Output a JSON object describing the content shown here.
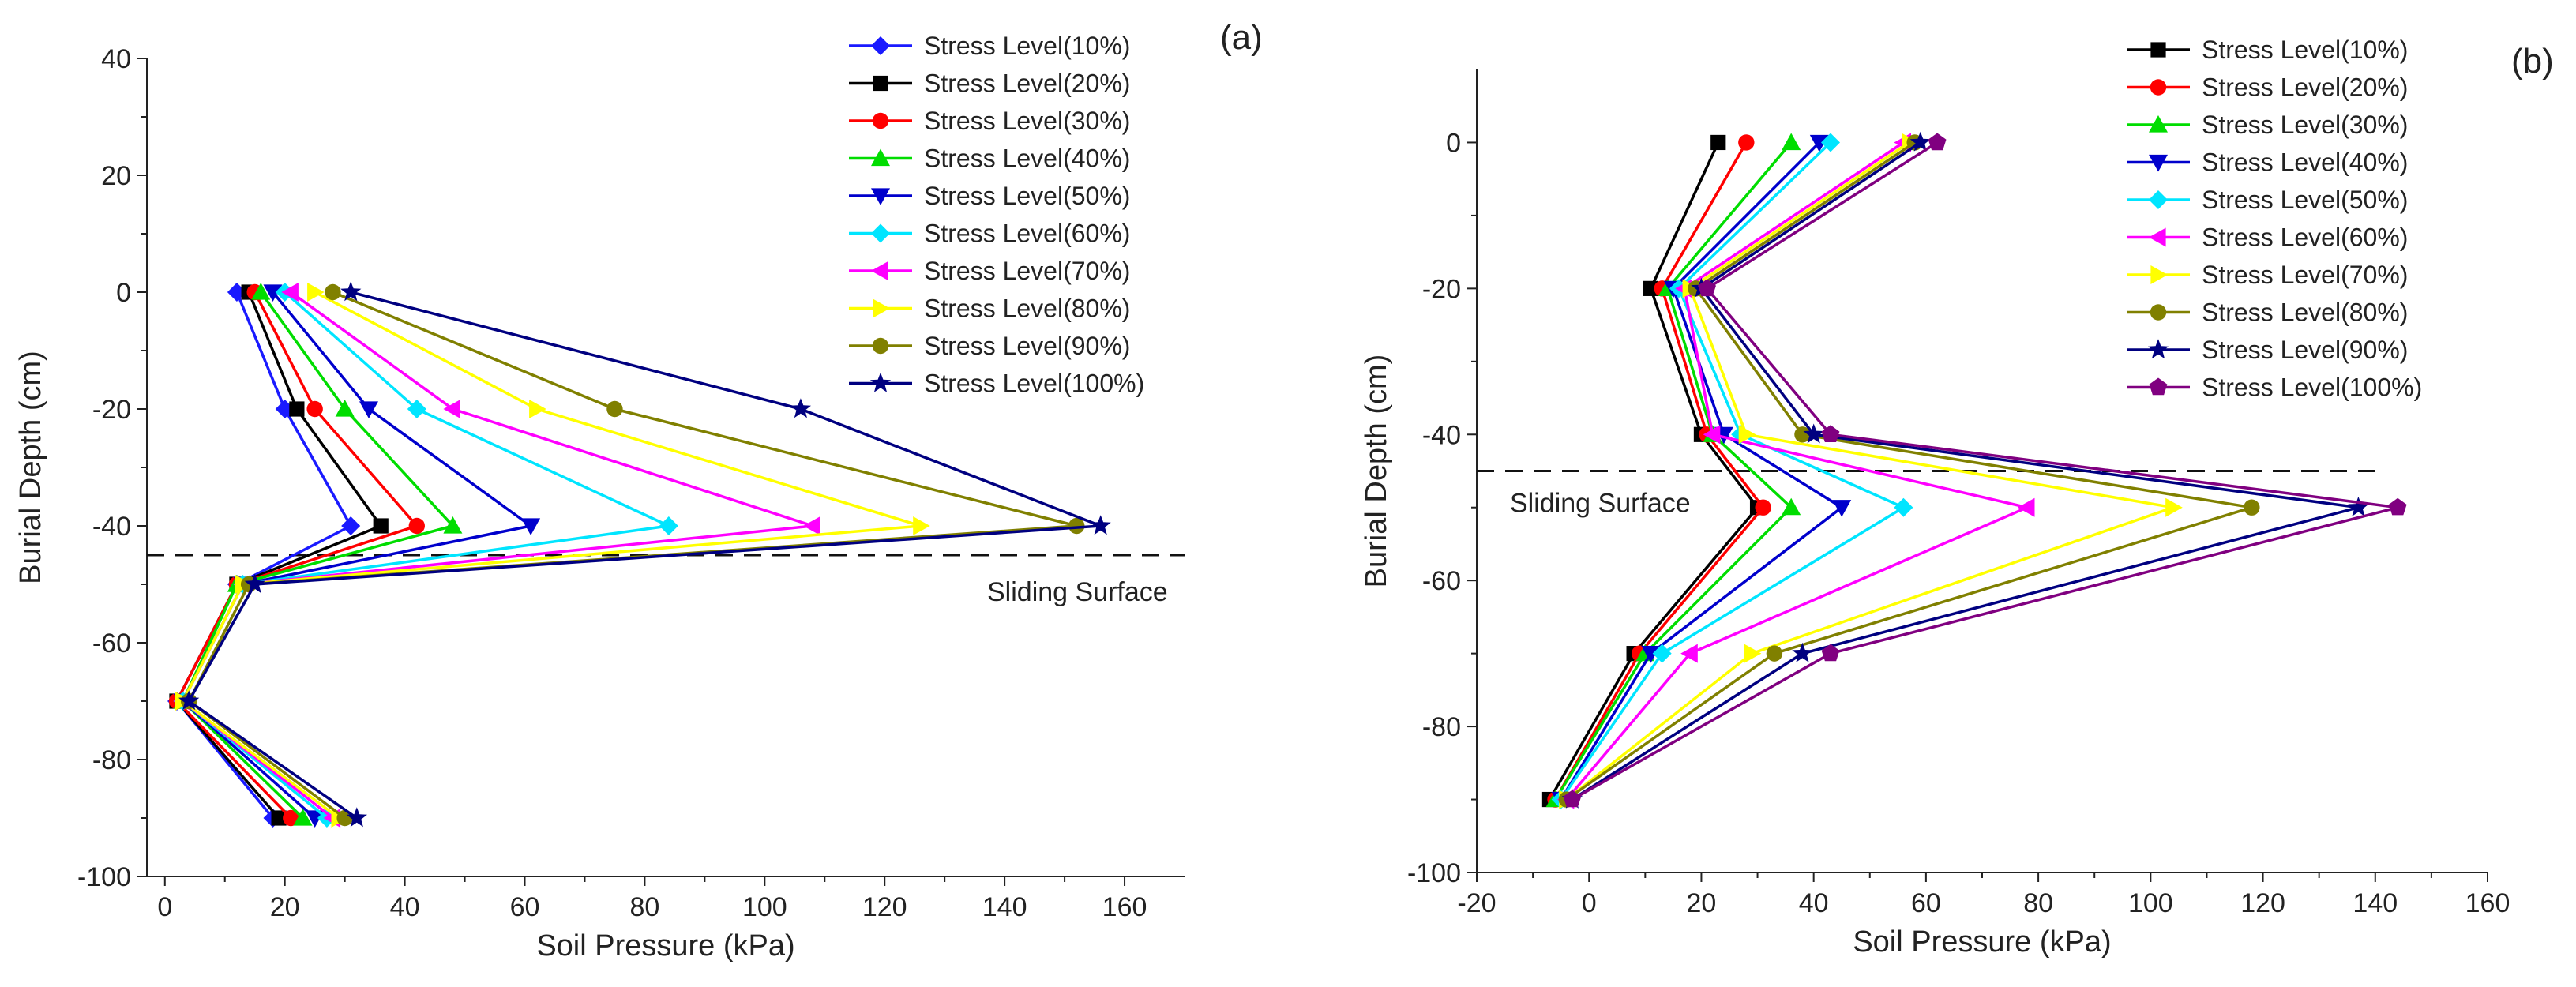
{
  "chart_data": [
    {
      "type": "line",
      "panel_label": "(a)",
      "title": "",
      "xlabel": "Soil Pressure (kPa)",
      "ylabel": "Burial Depth (cm)",
      "xlim": [
        -3,
        170
      ],
      "ylim": [
        -100,
        40
      ],
      "xticks": [
        0,
        20,
        40,
        60,
        80,
        100,
        120,
        140,
        160
      ],
      "yticks": [
        40,
        20,
        0,
        -20,
        -40,
        -60,
        -80,
        -100
      ],
      "legend_position": "top-right",
      "annotations": [
        {
          "text": "Sliding Surface",
          "depth": -45
        }
      ],
      "depths": [
        0,
        -20,
        -40,
        -50,
        -70,
        -90
      ],
      "series": [
        {
          "name": "Stress Level(10%)",
          "color": "#1a1aff",
          "marker": "diamond",
          "x": [
            12,
            20,
            31,
            12,
            2,
            18
          ]
        },
        {
          "name": "Stress Level(20%)",
          "color": "#000000",
          "marker": "square",
          "x": [
            14,
            22,
            36,
            12,
            2,
            19
          ]
        },
        {
          "name": "Stress Level(30%)",
          "color": "#ff0000",
          "marker": "circle",
          "x": [
            15,
            25,
            42,
            12,
            2,
            21
          ]
        },
        {
          "name": "Stress Level(40%)",
          "color": "#00dd00",
          "marker": "triangle-up",
          "x": [
            16,
            30,
            48,
            12,
            3,
            23
          ]
        },
        {
          "name": "Stress Level(50%)",
          "color": "#0000cc",
          "marker": "triangle-down",
          "x": [
            18,
            34,
            61,
            13,
            3,
            25
          ]
        },
        {
          "name": "Stress Level(60%)",
          "color": "#00e5ff",
          "marker": "diamond",
          "x": [
            20,
            42,
            84,
            13,
            3,
            27
          ]
        },
        {
          "name": "Stress Level(70%)",
          "color": "#ff00ff",
          "marker": "triangle-left",
          "x": [
            21,
            48,
            108,
            13,
            3,
            28
          ]
        },
        {
          "name": "Stress Level(80%)",
          "color": "#ffff00",
          "marker": "triangle-right",
          "x": [
            25,
            62,
            126,
            13,
            3,
            29
          ]
        },
        {
          "name": "Stress Level(90%)",
          "color": "#808000",
          "marker": "circle",
          "x": [
            28,
            75,
            152,
            14,
            4,
            30
          ]
        },
        {
          "name": "Stress Level(100%)",
          "color": "#000080",
          "marker": "star",
          "x": [
            31,
            106,
            156,
            15,
            4,
            32
          ]
        }
      ]
    },
    {
      "type": "line",
      "panel_label": "(b)",
      "title": "",
      "xlabel": "Soil Pressure (kPa)",
      "ylabel": "Burial Depth (cm)",
      "xlim": [
        -20,
        160
      ],
      "ylim": [
        -100,
        10
      ],
      "xticks": [
        -20,
        0,
        20,
        40,
        60,
        80,
        100,
        120,
        140,
        160
      ],
      "yticks": [
        0,
        -20,
        -40,
        -60,
        -80,
        -100
      ],
      "legend_position": "top-right",
      "annotations": [
        {
          "text": "Sliding Surface",
          "depth": -45
        }
      ],
      "depths": [
        0,
        -20,
        -40,
        -50,
        -70,
        -90
      ],
      "series": [
        {
          "name": "Stress Level(10%)",
          "color": "#000000",
          "marker": "square",
          "x": [
            23,
            11,
            20,
            30,
            8,
            -7
          ]
        },
        {
          "name": "Stress Level(20%)",
          "color": "#ff0000",
          "marker": "circle",
          "x": [
            28,
            13,
            21,
            31,
            9,
            -6
          ]
        },
        {
          "name": "Stress Level(30%)",
          "color": "#00dd00",
          "marker": "triangle-up",
          "x": [
            36,
            14,
            22,
            36,
            10,
            -6
          ]
        },
        {
          "name": "Stress Level(40%)",
          "color": "#0000cc",
          "marker": "triangle-down",
          "x": [
            41,
            15,
            24,
            45,
            11,
            -5
          ]
        },
        {
          "name": "Stress Level(50%)",
          "color": "#00e5ff",
          "marker": "diamond",
          "x": [
            43,
            16,
            27,
            56,
            13,
            -5
          ]
        },
        {
          "name": "Stress Level(60%)",
          "color": "#ff00ff",
          "marker": "triangle-left",
          "x": [
            56,
            17,
            22,
            78,
            18,
            -4
          ]
        },
        {
          "name": "Stress Level(70%)",
          "color": "#ffff00",
          "marker": "triangle-right",
          "x": [
            57,
            18,
            28,
            104,
            29,
            -4
          ]
        },
        {
          "name": "Stress Level(80%)",
          "color": "#808000",
          "marker": "circle",
          "x": [
            58,
            19,
            38,
            118,
            33,
            -4
          ]
        },
        {
          "name": "Stress Level(90%)",
          "color": "#000080",
          "marker": "star",
          "x": [
            59,
            20,
            40,
            137,
            38,
            -3
          ]
        },
        {
          "name": "Stress Level(100%)",
          "color": "#800080",
          "marker": "pentagon",
          "x": [
            62,
            21,
            43,
            144,
            43,
            -3
          ]
        }
      ]
    }
  ]
}
